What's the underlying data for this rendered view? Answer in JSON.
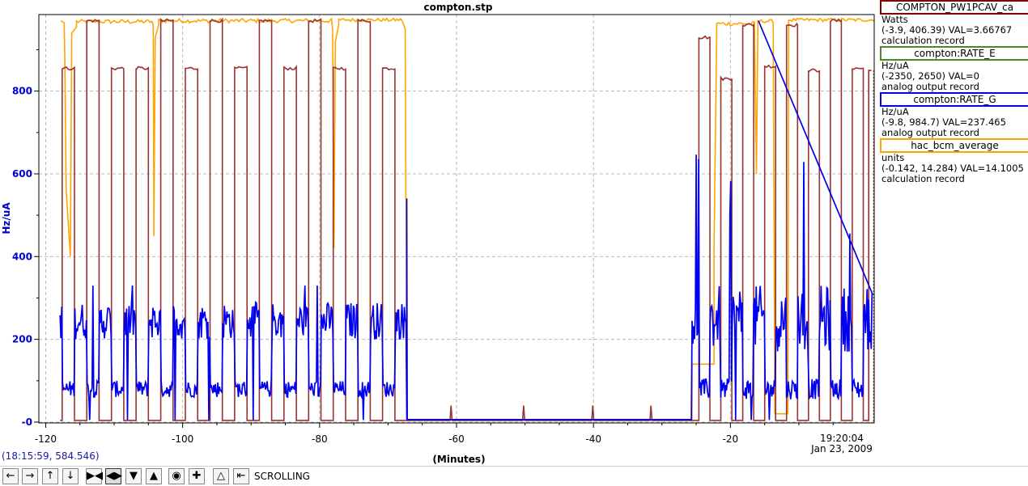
{
  "chart_data": {
    "type": "line",
    "title": "compton.stp",
    "xlabel": "(Minutes)",
    "ylabel": "Hz/uA",
    "xlim": [
      -121,
      1
    ],
    "ylim": [
      -2,
      985
    ],
    "x_ticks": [
      -120,
      -100,
      -80,
      -60,
      -40,
      -20
    ],
    "y_ticks": [
      0,
      200,
      400,
      600,
      800
    ],
    "x_tick_labels": [
      "-120",
      "-100",
      "-80",
      "-60",
      "-40",
      "-20"
    ],
    "y_tick_labels": [
      "-0",
      "200",
      "400",
      "600",
      "800"
    ],
    "time_label": "19:20:04",
    "date_label": "Jan 23, 2009",
    "grid": true,
    "legend_position": "right",
    "series": [
      {
        "name": "COMPTON_PW1PCAV_ca",
        "color": "#993333",
        "display_range": [
          -3.9,
          406.39
        ],
        "description": "high level ~855/970 (plot units) when cavity powered, ~4 when off"
      },
      {
        "name": "hac_bcm_average",
        "color": "#FFA500",
        "display_range": [
          -0.142,
          14.284
        ],
        "description": "beam current high ~965-975 (plot units), drops to ~140 / ~6 when off"
      },
      {
        "name": "compton:RATE_G",
        "color": "#0000EE",
        "display_range": [
          -9.8,
          984.7
        ],
        "description": "rate ~230-260 with noise when laser on, ~80 when off"
      }
    ],
    "segments": {
      "cycle_starts_min": [
        -117.6,
        -114.0,
        -110.4,
        -106.8,
        -103.2,
        -99.6,
        -96.0,
        -92.4,
        -88.8,
        -85.2,
        -81.6,
        -78.0,
        -74.4,
        -70.8
      ],
      "second_run_cycle_starts_min": [
        -24.6,
        -21.4,
        -18.2,
        -15.0,
        -11.8,
        -8.6,
        -5.4,
        -2.2
      ],
      "gap_start_min": -67.2,
      "gap_end_min": -25.6
    }
  },
  "legend": [
    {
      "name": "COMPTON_PW1PCAV_ca",
      "unit": "Watts",
      "range": "(-3.9, 406.39) VAL=3.66767",
      "record": "calculation record",
      "color": "#800000"
    },
    {
      "name": "compton:RATE_E",
      "unit": "Hz/uA",
      "range": "(-2350, 2650)  VAL=0",
      "record": "analog output record",
      "color": "#4a8a26"
    },
    {
      "name": "compton:RATE_G",
      "unit": "Hz/uA",
      "range": "(-9.8, 984.7) VAL=237.465",
      "record": "analog output record",
      "color": "#0000ee"
    },
    {
      "name": "hac_bcm_average",
      "unit": "units",
      "range": "(-0.142, 14.284) VAL=14.1005",
      "record": "calculation record",
      "color": "#ffa500"
    }
  ],
  "cursor_readout": "(18:15:59, 584.546)",
  "toolbar": {
    "status": "SCROLLING",
    "icons": [
      "pan-left-icon",
      "pan-right-icon",
      "pan-up-icon",
      "pan-down-icon",
      "zoom-x-in-icon",
      "zoom-x-out-icon",
      "zoom-y-in-icon",
      "zoom-y-out-icon",
      "zoom-box-icon",
      "crosshair-icon",
      "autoscale-icon",
      "reset-scroll-icon"
    ]
  }
}
